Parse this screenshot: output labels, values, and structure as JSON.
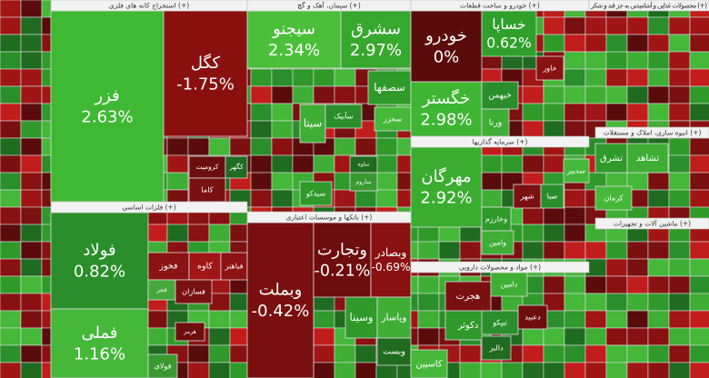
{
  "sectors": [
    {
      "title": "استخراج کانه های فلزی (+)",
      "tiles": [
        {
          "name": "فزر",
          "change": "2.63%",
          "color": "#3fb833"
        },
        {
          "name": "کگل",
          "change": "-1.75%",
          "color": "#8a1010"
        },
        {
          "name": "کرومیت",
          "color": "#6b0d0d"
        },
        {
          "name": "کاما",
          "color": "#7a1010"
        },
        {
          "name": "کگهر",
          "color": "#1f6b1f"
        }
      ]
    },
    {
      "title": "فلزات اساسی (+)",
      "tiles": [
        {
          "name": "فولاد",
          "change": "0.82%",
          "color": "#2a8f2a"
        },
        {
          "name": "فملی",
          "change": "1.16%",
          "color": "#45b83a"
        },
        {
          "name": "فخوز",
          "color": "#8b1313"
        },
        {
          "name": "کاوه",
          "color": "#a01515"
        },
        {
          "name": "فباهنر",
          "color": "#8f1212"
        },
        {
          "name": "فجر",
          "color": "#47a83a"
        },
        {
          "name": "فسازان",
          "color": "#7a1010"
        },
        {
          "name": "هرمز",
          "color": "#6d0d0d"
        },
        {
          "name": "فولای",
          "color": "#3a9a30"
        }
      ]
    },
    {
      "title": "سیمان، آهک و گچ (+)",
      "tiles": [
        {
          "name": "سیجنو",
          "change": "2.34%",
          "color": "#4cbf3a"
        },
        {
          "name": "سشرق",
          "change": "2.97%",
          "color": "#37a82e"
        },
        {
          "name": "سصفها",
          "color": "#2f9a2a"
        },
        {
          "name": "سیتا",
          "color": "#3fae34"
        },
        {
          "name": "سآبیک",
          "color": "#2a8f2a"
        },
        {
          "name": "سخزر",
          "color": "#45b83a"
        },
        {
          "name": "سیدکو",
          "color": "#2f9a2a"
        },
        {
          "name": "ساوه",
          "color": "#1f6b1f"
        },
        {
          "name": "ساروم",
          "color": "#3a9a30"
        }
      ]
    },
    {
      "title": "بانکها و موسسات اعتباری (+)",
      "tiles": [
        {
          "name": "وبملت",
          "change": "-0.42%",
          "color": "#7a0f0f"
        },
        {
          "name": "وتجارت",
          "change": "-0.21%",
          "color": "#6d0d0d"
        },
        {
          "name": "وبصادر",
          "change": "-0.69%",
          "color": "#8a1111"
        },
        {
          "name": "وسینا",
          "color": "#2f9a2a"
        },
        {
          "name": "وپاسار",
          "color": "#3fae34"
        },
        {
          "name": "وبست",
          "color": "#1f6b1f"
        }
      ]
    },
    {
      "title": "خودرو و ساخت قطعات (+)",
      "tiles": [
        {
          "name": "خودرو",
          "change": "0%",
          "color": "#5a0c0c"
        },
        {
          "name": "خساپا",
          "change": "0.62%",
          "color": "#2fa02a"
        },
        {
          "name": "خگستر",
          "change": "2.98%",
          "color": "#3fb534"
        },
        {
          "name": "خبهمن",
          "color": "#2a8f2a"
        },
        {
          "name": "خاور",
          "color": "#8a1111"
        },
        {
          "name": "ورنا",
          "color": "#3fae34"
        }
      ]
    },
    {
      "title": "سرمایه گذاریها (+)",
      "tiles": [
        {
          "name": "مهرگان",
          "change": "2.92%",
          "color": "#3aad30"
        },
        {
          "name": "وخارزم",
          "color": "#2f9a2a"
        },
        {
          "name": "شهر",
          "color": "#7a1010"
        },
        {
          "name": "وامین",
          "color": "#3fae34"
        },
        {
          "name": "صبا",
          "color": "#2a8f2a"
        },
        {
          "name": "سدبیر",
          "color": "#45b83a"
        }
      ]
    },
    {
      "title": "مواد و محصولات دارویی (+)",
      "tiles": [
        {
          "name": "هجرت",
          "color": "#7a1010"
        },
        {
          "name": "دکوثر",
          "color": "#2f9a2a"
        },
        {
          "name": "دامین",
          "color": "#3fae34"
        },
        {
          "name": "تیپکو",
          "color": "#2a8f2a"
        },
        {
          "name": "دعبید",
          "color": "#6d0d0d"
        },
        {
          "name": "دالبر",
          "color": "#1f6b1f"
        },
        {
          "name": "کاسپین",
          "color": "#45b83a"
        }
      ]
    },
    {
      "title": "محصولات غذایی و آشامیدنی به جز قند و شکر (+)",
      "tiles": []
    },
    {
      "title": "انبوه سازی، املاک و مستغلات (+)",
      "tiles": [
        {
          "name": "تشرق",
          "color": "#2f9a2a"
        },
        {
          "name": "تشاهد",
          "color": "#3fae34"
        },
        {
          "name": "کرمان",
          "color": "#45b83a"
        }
      ]
    },
    {
      "title": "ماشین آلات و تجهیزات (+)",
      "tiles": []
    }
  ]
}
